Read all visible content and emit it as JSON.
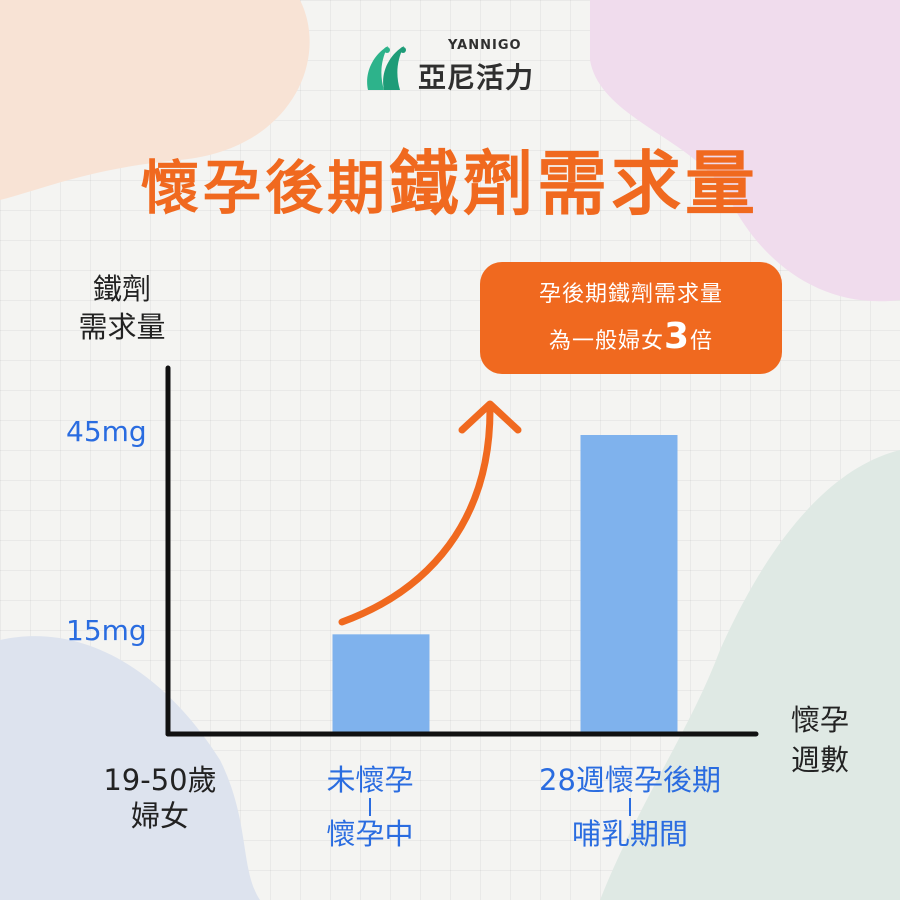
{
  "brand": {
    "name_en": "YANNIGO",
    "name_zh": "亞尼活力"
  },
  "title": {
    "part1": "懷孕後期",
    "part2": "鐵劑需求量"
  },
  "callout": {
    "line1": "孕後期鐵劑需求量",
    "line2_prefix": "為一般婦女",
    "line2_number": "3",
    "line2_suffix": "倍"
  },
  "colors": {
    "accent": "#f0691f",
    "bar": "#7fb2ed",
    "tick": "#2a6ce0",
    "axis": "#111111"
  },
  "chart_data": {
    "type": "bar",
    "ylabel_lines": [
      "鐵劑",
      "需求量"
    ],
    "xlabel_lines": [
      "懷孕",
      "週數"
    ],
    "y_ticks": [
      {
        "value": 15,
        "label": "15mg"
      },
      {
        "value": 45,
        "label": "45mg"
      }
    ],
    "origin_label_lines": [
      "19-50歲",
      "婦女"
    ],
    "categories": [
      {
        "lines": [
          "未懷孕",
          "懷孕中"
        ]
      },
      {
        "lines": [
          "28週懷孕後期",
          "哺乳期間"
        ]
      }
    ],
    "values": [
      15,
      45
    ],
    "ylim": [
      0,
      56
    ],
    "grid": false,
    "legend": "none"
  }
}
